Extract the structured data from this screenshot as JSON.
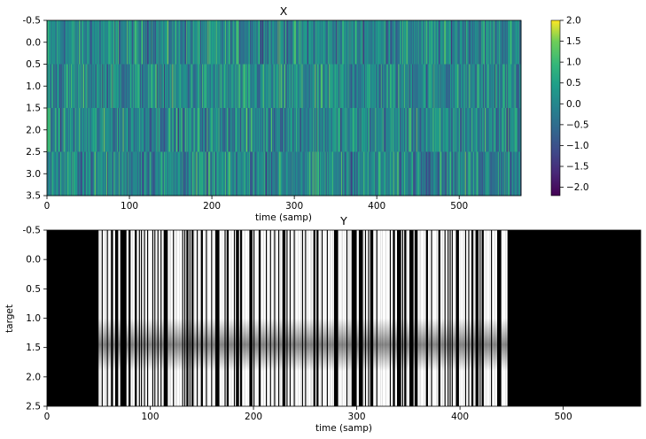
{
  "chart_data": [
    {
      "type": "heatmap",
      "title": "X",
      "xlabel": "time (samp)",
      "ylabel": "",
      "xlim": [
        0,
        575
      ],
      "ylim": [
        3.5,
        -0.5
      ],
      "xticks": [
        "0",
        "100",
        "200",
        "300",
        "400",
        "500"
      ],
      "yticks": [
        "-0.5",
        "0.0",
        "0.5",
        "1.0",
        "1.5",
        "2.0",
        "2.5",
        "3.0",
        "3.5"
      ],
      "colormap": "viridis",
      "colorbar": {
        "range": [
          -2.2,
          2.0
        ],
        "ticks": [
          "2.0",
          "1.5",
          "1.0",
          "0.5",
          "0.0",
          "−0.5",
          "−1.0",
          "−1.5",
          "−2.0"
        ]
      }
    },
    {
      "type": "heatmap",
      "title": "Y",
      "xlabel": "time (samp)",
      "ylabel": "target",
      "xlim": [
        0,
        575
      ],
      "ylim": [
        2.5,
        -0.5
      ],
      "xticks": [
        "0",
        "100",
        "200",
        "300",
        "400",
        "500"
      ],
      "yticks": [
        "-0.5",
        "0.0",
        "0.5",
        "1.0",
        "1.5",
        "2.0",
        "2.5"
      ],
      "colormap": "gray",
      "active_range": [
        50,
        445
      ]
    }
  ]
}
